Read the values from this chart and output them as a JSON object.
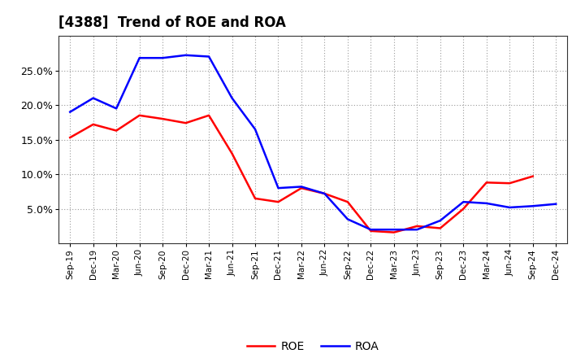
{
  "title": "[4388]  Trend of ROE and ROA",
  "labels": [
    "Sep-19",
    "Dec-19",
    "Mar-20",
    "Jun-20",
    "Sep-20",
    "Dec-20",
    "Mar-21",
    "Jun-21",
    "Sep-21",
    "Dec-21",
    "Mar-22",
    "Jun-22",
    "Sep-22",
    "Dec-22",
    "Mar-23",
    "Jun-23",
    "Sep-23",
    "Dec-23",
    "Mar-24",
    "Jun-24",
    "Sep-24",
    "Dec-24"
  ],
  "ROE": [
    0.153,
    0.172,
    0.163,
    0.185,
    0.18,
    0.174,
    0.185,
    0.13,
    0.065,
    0.06,
    0.08,
    0.072,
    0.06,
    0.018,
    0.016,
    0.025,
    0.022,
    0.05,
    0.088,
    0.087,
    0.097,
    null
  ],
  "ROA": [
    0.19,
    0.21,
    0.195,
    0.268,
    0.268,
    0.272,
    0.27,
    0.21,
    0.165,
    0.08,
    0.082,
    0.072,
    0.035,
    0.02,
    0.02,
    0.02,
    0.033,
    0.06,
    0.058,
    0.052,
    0.054,
    0.057
  ],
  "roe_color": "#ff0000",
  "roa_color": "#0000ff",
  "bg_color": "#ffffff",
  "plot_bg_color": "#ffffff",
  "grid_color": "#999999",
  "ylim": [
    0.0,
    0.3
  ],
  "yticks": [
    0.05,
    0.1,
    0.15,
    0.2,
    0.25
  ],
  "title_fontsize": 12,
  "line_width": 1.8,
  "legend_fontsize": 10
}
